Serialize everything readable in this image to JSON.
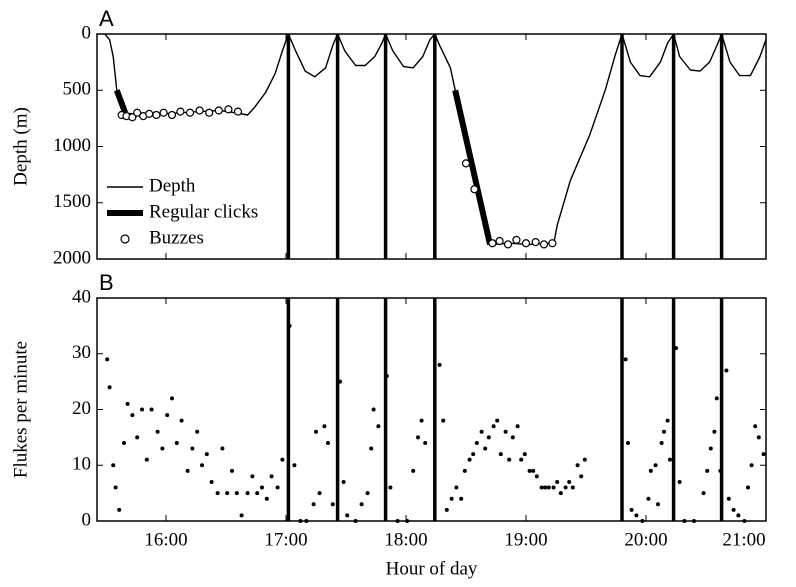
{
  "chart_data": [
    {
      "type": "line",
      "panel_label": "A",
      "ylabel": "Depth (m)",
      "xlim": [
        15.425,
        21
      ],
      "xticks": [
        16,
        17,
        18,
        19,
        20,
        21
      ],
      "ylim": [
        0,
        2000
      ],
      "yticks": [
        0,
        500,
        1000,
        1500,
        2000
      ],
      "y_inverted": true,
      "legend": "lower left",
      "vlines": [
        17.02,
        17.43,
        17.83,
        18.24,
        19.8,
        20.23,
        20.63
      ],
      "series": [
        {
          "name": "Depth",
          "style": "line",
          "color": "#000000",
          "x": [
            15.49,
            15.53,
            15.56,
            15.59,
            15.62,
            15.66,
            15.78,
            15.95,
            16.12,
            16.28,
            16.45,
            16.58,
            16.68,
            16.74,
            16.83,
            16.91,
            16.97,
            17.02,
            17.08,
            17.16,
            17.24,
            17.33,
            17.39,
            17.43,
            17.49,
            17.58,
            17.66,
            17.74,
            17.8,
            17.83,
            17.89,
            17.98,
            18.06,
            18.14,
            18.2,
            18.24,
            18.28,
            18.37,
            18.41,
            18.49,
            18.58,
            18.66,
            18.7,
            18.87,
            19.03,
            19.2,
            19.23,
            19.26,
            19.37,
            19.53,
            19.66,
            19.74,
            19.8,
            19.87,
            19.95,
            20.03,
            20.12,
            20.18,
            20.23,
            20.28,
            20.37,
            20.45,
            20.53,
            20.6,
            20.63,
            20.7,
            20.78,
            20.87,
            20.95,
            21.0
          ],
          "y": [
            0,
            50,
            200,
            500,
            620,
            700,
            720,
            710,
            700,
            690,
            680,
            700,
            720,
            650,
            520,
            350,
            150,
            0,
            150,
            330,
            380,
            300,
            100,
            0,
            150,
            280,
            280,
            200,
            80,
            0,
            150,
            290,
            300,
            200,
            50,
            0,
            100,
            300,
            500,
            900,
            1300,
            1700,
            1870,
            1860,
            1870,
            1860,
            1870,
            1700,
            1300,
            900,
            500,
            200,
            0,
            250,
            370,
            380,
            250,
            80,
            0,
            200,
            320,
            330,
            250,
            80,
            0,
            250,
            370,
            370,
            200,
            50
          ]
        },
        {
          "name": "Regular clicks",
          "style": "thick",
          "color": "#000000",
          "x": [
            15.59,
            15.66,
            null,
            18.41,
            18.7
          ],
          "y": [
            500,
            700,
            null,
            500,
            1870
          ]
        },
        {
          "name": "Buzzes",
          "style": "circles",
          "color": "#000000",
          "x": [
            15.63,
            15.67,
            15.72,
            15.76,
            15.81,
            15.86,
            15.92,
            15.98,
            16.05,
            16.12,
            16.2,
            16.28,
            16.36,
            16.44,
            16.52,
            16.6,
            18.5,
            18.57,
            18.72,
            18.78,
            18.85,
            18.92,
            19.0,
            19.08,
            19.15,
            19.22
          ],
          "y": [
            720,
            730,
            740,
            700,
            730,
            710,
            720,
            700,
            720,
            690,
            700,
            680,
            700,
            680,
            670,
            690,
            1150,
            1380,
            1860,
            1840,
            1870,
            1830,
            1860,
            1850,
            1870,
            1860
          ]
        }
      ]
    },
    {
      "type": "scatter",
      "panel_label": "B",
      "ylabel": "Flukes per minute",
      "xlabel": "Hour of day",
      "xlim": [
        15.425,
        21
      ],
      "xticks": [
        {
          "value": 16,
          "label": "16:00"
        },
        {
          "value": 17,
          "label": "17:00"
        },
        {
          "value": 18,
          "label": "18:00"
        },
        {
          "value": 19,
          "label": "19:00"
        },
        {
          "value": 20,
          "label": "20:00"
        },
        {
          "value": 21,
          "label": "21:00"
        }
      ],
      "ylim": [
        0,
        40
      ],
      "yticks": [
        0,
        10,
        20,
        30,
        40
      ],
      "vlines": [
        17.02,
        17.43,
        17.83,
        18.24,
        19.8,
        20.23,
        20.63
      ],
      "color": "#000000",
      "x": [
        15.51,
        15.53,
        15.56,
        15.58,
        15.61,
        15.65,
        15.68,
        15.72,
        15.76,
        15.8,
        15.84,
        15.88,
        15.93,
        15.97,
        16.01,
        16.05,
        16.09,
        16.13,
        16.18,
        16.22,
        16.26,
        16.3,
        16.34,
        16.38,
        16.43,
        16.47,
        16.51,
        16.55,
        16.59,
        16.63,
        16.68,
        16.72,
        16.76,
        16.8,
        16.84,
        16.88,
        16.93,
        16.97,
        17.03,
        17.07,
        17.12,
        17.17,
        17.23,
        17.25,
        17.28,
        17.32,
        17.35,
        17.39,
        17.45,
        17.48,
        17.51,
        17.58,
        17.63,
        17.68,
        17.71,
        17.73,
        17.77,
        17.84,
        17.87,
        17.93,
        18.01,
        18.06,
        18.1,
        18.13,
        18.16,
        18.28,
        18.31,
        18.34,
        18.38,
        18.42,
        18.46,
        18.49,
        18.53,
        18.56,
        18.59,
        18.63,
        18.66,
        18.69,
        18.73,
        18.76,
        18.79,
        18.83,
        18.86,
        18.89,
        18.93,
        18.96,
        18.99,
        19.03,
        19.06,
        19.09,
        19.13,
        19.16,
        19.19,
        19.23,
        19.26,
        19.29,
        19.33,
        19.36,
        19.39,
        19.43,
        19.46,
        19.49,
        19.83,
        19.85,
        19.88,
        19.92,
        19.97,
        20.02,
        20.04,
        20.08,
        20.1,
        20.13,
        20.15,
        20.18,
        20.2,
        20.25,
        20.28,
        20.32,
        20.4,
        20.48,
        20.51,
        20.54,
        20.57,
        20.59,
        20.62,
        20.67,
        20.69,
        20.73,
        20.77,
        20.82,
        20.85,
        20.88,
        20.91,
        20.94,
        20.98
      ],
      "y": [
        29,
        24,
        10,
        6,
        2,
        14,
        21,
        19,
        15,
        20,
        11,
        20,
        16,
        13,
        19,
        22,
        14,
        18,
        9,
        13,
        16,
        10,
        12,
        7,
        5,
        13,
        5,
        9,
        5,
        1,
        5,
        8,
        5,
        6,
        4,
        8,
        6,
        11,
        35,
        10,
        0,
        0,
        3,
        16,
        5,
        17,
        14,
        3,
        25,
        7,
        1,
        0,
        3,
        5,
        13,
        20,
        17,
        26,
        6,
        0,
        0,
        9,
        15,
        18,
        14,
        28,
        18,
        2,
        4,
        6,
        4,
        9,
        11,
        12,
        14,
        16,
        13,
        15,
        17,
        18,
        12,
        16,
        11,
        15,
        17,
        11,
        12,
        9,
        9,
        8,
        6,
        6,
        6,
        6,
        7,
        5,
        6,
        7,
        6,
        10,
        8,
        11,
        29,
        14,
        2,
        1,
        0,
        4,
        9,
        10,
        3,
        14,
        16,
        18,
        11,
        31,
        7,
        0,
        0,
        5,
        9,
        13,
        16,
        22,
        9,
        27,
        4,
        2,
        1,
        0,
        6,
        10,
        17,
        15,
        12
      ]
    }
  ]
}
